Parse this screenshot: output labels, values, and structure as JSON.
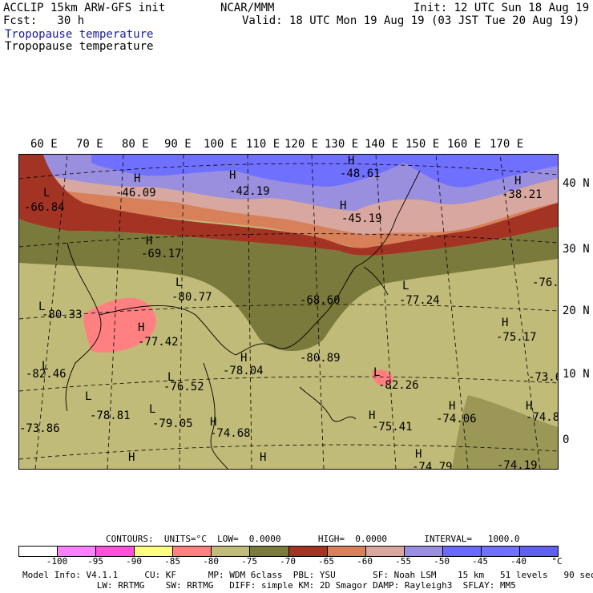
{
  "header": {
    "model_title": "ACCLIP 15km ARW-GFS init",
    "org": "NCAR/MMM",
    "init": "Init: 12 UTC Sun 18 Aug 19",
    "fcst": "Fcst:   30 h",
    "valid": "Valid: 18 UTC Mon 19 Aug 19 (03 JST Tue 20 Aug 19)",
    "field1": "Tropopause temperature",
    "field2": "Tropopause temperature"
  },
  "lon_labels": [
    "60 E",
    "70 E",
    "80 E",
    "90 E",
    "100 E",
    "110 E",
    "120 E",
    "130 E",
    "140 E",
    "150 E",
    "160 E",
    "170 E"
  ],
  "lat_labels": [
    "40 N",
    "30 N",
    "20 N",
    "10 N",
    "0"
  ],
  "map_labels": [
    {
      "t": "L",
      "id": "l1"
    },
    {
      "t": "-66.84",
      "id": "v1"
    },
    {
      "t": "-46.09",
      "id": "v2"
    },
    {
      "t": "H",
      "id": "h2"
    },
    {
      "t": "H",
      "id": "h3"
    },
    {
      "t": "-42.19",
      "id": "v3"
    },
    {
      "t": "H",
      "id": "h4"
    },
    {
      "t": "-48.61",
      "id": "v4"
    },
    {
      "t": "H",
      "id": "h5"
    },
    {
      "t": "-45.19",
      "id": "v5"
    },
    {
      "t": "H",
      "id": "h6"
    },
    {
      "t": "-38.21",
      "id": "v6"
    },
    {
      "t": "H",
      "id": "h7"
    },
    {
      "t": "-69.17",
      "id": "v7"
    },
    {
      "t": "L",
      "id": "l8"
    },
    {
      "t": "-80.77",
      "id": "v8"
    },
    {
      "t": "L",
      "id": "l9"
    },
    {
      "t": "-80.33",
      "id": "v9"
    },
    {
      "t": "H",
      "id": "h10"
    },
    {
      "t": "-77.42",
      "id": "v10"
    },
    {
      "t": "-68.60",
      "id": "v11"
    },
    {
      "t": "L",
      "id": "l12"
    },
    {
      "t": "-77.24",
      "id": "v12"
    },
    {
      "t": "-76.",
      "id": "v13"
    },
    {
      "t": "H",
      "id": "h14"
    },
    {
      "t": "-75.17",
      "id": "v14"
    },
    {
      "t": "-80.89",
      "id": "v15"
    },
    {
      "t": "H",
      "id": "h16"
    },
    {
      "t": "-78.04",
      "id": "v16"
    },
    {
      "t": "L",
      "id": "l17"
    },
    {
      "t": "-82.46",
      "id": "v17"
    },
    {
      "t": "L",
      "id": "l18"
    },
    {
      "t": "-76.52",
      "id": "v18"
    },
    {
      "t": "L",
      "id": "l19"
    },
    {
      "t": "-82.26",
      "id": "v19"
    },
    {
      "t": "-73.6",
      "id": "v20"
    },
    {
      "t": "L",
      "id": "l21"
    },
    {
      "t": "-78.81",
      "id": "v21"
    },
    {
      "t": "L",
      "id": "l22"
    },
    {
      "t": "-79.05",
      "id": "v22"
    },
    {
      "t": "H",
      "id": "h23"
    },
    {
      "t": "-75.41",
      "id": "v23"
    },
    {
      "t": "H",
      "id": "h24"
    },
    {
      "t": "-74.06",
      "id": "v24"
    },
    {
      "t": "H",
      "id": "h25"
    },
    {
      "t": "-74.8",
      "id": "v25"
    },
    {
      "t": "-73.86",
      "id": "v26"
    },
    {
      "t": "H",
      "id": "h27"
    },
    {
      "t": "-74.68",
      "id": "v27"
    },
    {
      "t": "H",
      "id": "h28"
    },
    {
      "t": "H",
      "id": "h29"
    },
    {
      "t": "H",
      "id": "h30"
    },
    {
      "t": "-74.79",
      "id": "v30"
    },
    {
      "t": "-74.19",
      "id": "v31"
    }
  ],
  "contours_line": "CONTOURS:  UNITS=°C  LOW=  0.0000       HIGH=  0.0000       INTERVAL=   1000.0",
  "legend": {
    "colors": [
      "#ffffff",
      "#ff80ff",
      "#ff50d8",
      "#ffff80",
      "#ff8080",
      "#c0bb78",
      "#7a7a3c",
      "#a33424",
      "#d8805a",
      "#d8a8a0",
      "#9a8ede",
      "#6a6aff",
      "#7070ff",
      "#6060f0"
    ],
    "ticks": [
      "-100",
      "-95",
      "-90",
      "-85",
      "-80",
      "-75",
      "-70",
      "-65",
      "-60",
      "-55",
      "-50",
      "-45",
      "-40",
      "°C"
    ]
  },
  "footer": {
    "line1": "Model Info: V4.1.1     CU: KF      MP: WDM 6class  PBL: YSU       SF: Noah LSM    15 km   51 levels   90 sec",
    "line2": "              LW: RRTMG    SW: RRTMG   DIFF: simple KM: 2D Smagor DAMP: Rayleigh3  SFLAY: MM5"
  }
}
